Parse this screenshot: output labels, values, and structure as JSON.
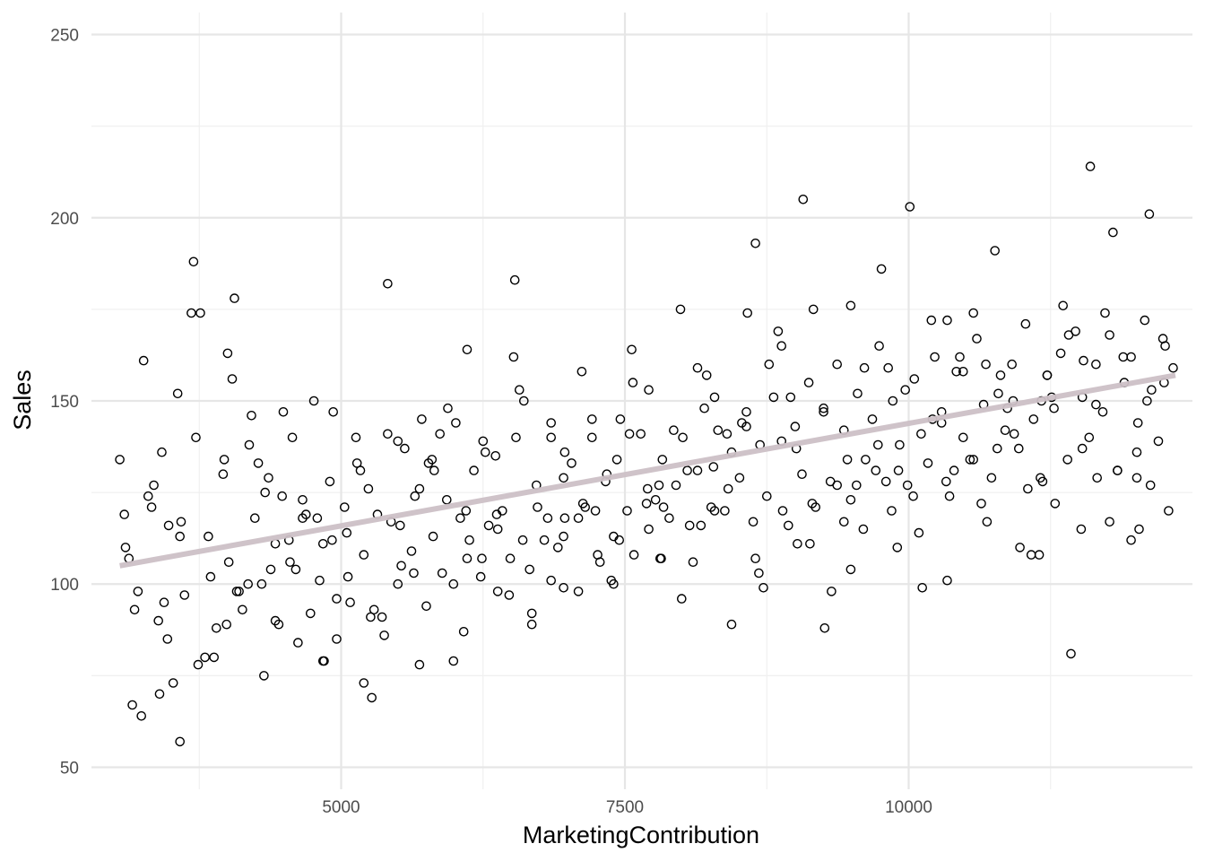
{
  "chart_data": {
    "type": "scatter",
    "xlabel": "MarketingContribution",
    "ylabel": "Sales",
    "xlim": [
      2800,
      12500
    ],
    "ylim": [
      44,
      256
    ],
    "xticks": [
      5000,
      7500,
      10000
    ],
    "yticks": [
      50,
      100,
      150,
      200,
      250
    ],
    "grid": true,
    "trend_line": {
      "x": [
        3050,
        12350
      ],
      "y": [
        105,
        157
      ],
      "color": "#ccc0c6"
    },
    "points": {
      "x": [
        3050,
        3090,
        3130,
        3180,
        3260,
        3330,
        3390,
        3420,
        3480,
        3560,
        3620,
        3700,
        3760,
        3830,
        3880,
        3960,
        4010,
        4060,
        4130,
        4190,
        4240,
        4300,
        4360,
        4420,
        4490,
        4540,
        4600,
        4660,
        4730,
        4790,
        4840,
        4900,
        4960,
        5030,
        5080,
        5140,
        5200,
        5260,
        5320,
        5380,
        5440,
        5500,
        5560,
        5620,
        5690,
        5750,
        5810,
        5870,
        5930,
        5990,
        6050,
        6110,
        6170,
        6230,
        6300,
        6360,
        6420,
        6480,
        6540,
        6600,
        6660,
        6720,
        6790,
        6850,
        6910,
        6970,
        7030,
        7090,
        7150,
        7210,
        7280,
        7340,
        7400,
        7460,
        7520,
        7580,
        7640,
        7710,
        7770,
        7830,
        7890,
        7950,
        8010,
        8070,
        8140,
        8200,
        8260,
        8320,
        8380,
        8440,
        8510,
        8570,
        8630,
        8690,
        8750,
        8810,
        8880,
        8940,
        9000,
        9060,
        9120,
        9180,
        9250,
        9310,
        9370,
        9430,
        9490,
        9550,
        9620,
        9680,
        9740,
        9800,
        9860,
        9920,
        9990,
        10050,
        10110,
        10170,
        10230,
        10290,
        10360,
        10420,
        10480,
        10540,
        10600,
        10660,
        10730,
        10790,
        10850,
        10910,
        10970,
        11030,
        11100,
        11160,
        11220,
        11280,
        11340,
        11400,
        11470,
        11530,
        11590,
        11650,
        11710,
        11770,
        11840,
        11900,
        11960,
        12020,
        12080,
        12140,
        12200,
        12260,
        12330,
        3100,
        3210,
        3350,
        3470,
        3590,
        3720,
        3850,
        3970,
        4080,
        4210,
        4330,
        4450,
        4570,
        4690,
        4810,
        4930,
        5050,
        5170,
        5290,
        5410,
        5530,
        5650,
        5770,
        5890,
        6010,
        6130,
        6250,
        6370,
        6490,
        6610,
        6730,
        6850,
        6970,
        7090,
        7210,
        7330,
        7450,
        7570,
        7690,
        7810,
        7930,
        8050,
        8170,
        8290,
        8410,
        8530,
        8650,
        8770,
        8890,
        9010,
        9130,
        9250,
        9370,
        9490,
        9610,
        9730,
        9850,
        9970,
        10090,
        10210,
        10330,
        10450,
        10570,
        10690,
        10810,
        10930,
        11050,
        11170,
        11290,
        11410,
        11530,
        11650,
        11770,
        11890,
        12010,
        12130,
        12250,
        3160,
        3300,
        3440,
        3580,
        3740,
        3900,
        4040,
        4180,
        4320,
        4480,
        4620,
        4760,
        4920,
        5060,
        5200,
        5360,
        5500,
        5640,
        5800,
        5940,
        6080,
        6240,
        6380,
        6520,
        6680,
        6820,
        6960,
        7120,
        7260,
        7400,
        7560,
        7700,
        7840,
        8000,
        8140,
        8280,
        8440,
        8580,
        8720,
        8880,
        9020,
        9160,
        9320,
        9460,
        9600,
        9760,
        9900,
        10040,
        10200,
        10340,
        10480,
        10640,
        10780,
        10920,
        11080,
        11220,
        11360,
        11520,
        11660,
        11800,
        11960,
        12100,
        12240,
        3240,
        3520,
        3800,
        4100,
        4380,
        4660,
        4960,
        5240,
        5520,
        5820,
        6100,
        6380,
        6680,
        6960,
        7240,
        7540,
        7820,
        8100,
        8400,
        8680,
        8960,
        9260,
        9540,
        9820,
        10120,
        10400,
        10680,
        10980,
        11260,
        11540,
        11840,
        12120,
        3400,
        3680,
        3990,
        4270,
        4550,
        4850,
        5130,
        5410,
        5710,
        5990,
        6270,
        6570,
        6850,
        7130,
        7430,
        7710,
        7990,
        8290,
        8570,
        8850,
        9150,
        9430,
        9710,
        10010,
        10290,
        10570,
        10870,
        11150,
        11430,
        11730,
        12010,
        12290,
        3580,
        4000,
        4420,
        4840,
        5270,
        5690,
        6110,
        6530,
        6960,
        7380,
        7800,
        8220,
        8650,
        9070,
        9490,
        9910,
        10340,
        10760,
        11180,
        11600,
        12030
      ],
      "y": [
        134,
        119,
        107,
        93,
        161,
        121,
        90,
        136,
        116,
        152,
        97,
        188,
        174,
        113,
        80,
        130,
        106,
        178,
        93,
        138,
        118,
        100,
        129,
        90,
        147,
        112,
        104,
        123,
        92,
        118,
        111,
        128,
        96,
        121,
        95,
        133,
        108,
        91,
        119,
        86,
        117,
        100,
        137,
        109,
        126,
        94,
        113,
        141,
        123,
        100,
        118,
        107,
        131,
        102,
        116,
        135,
        120,
        97,
        140,
        112,
        104,
        127,
        112,
        144,
        110,
        118,
        133,
        98,
        121,
        140,
        106,
        130,
        113,
        145,
        120,
        108,
        141,
        115,
        123,
        134,
        118,
        127,
        140,
        116,
        131,
        148,
        121,
        142,
        120,
        136,
        129,
        147,
        117,
        138,
        124,
        151,
        139,
        116,
        143,
        130,
        155,
        121,
        147,
        128,
        160,
        142,
        123,
        152,
        134,
        145,
        165,
        128,
        150,
        138,
        127,
        156,
        141,
        133,
        162,
        147,
        124,
        158,
        140,
        134,
        167,
        149,
        129,
        152,
        142,
        160,
        137,
        171,
        145,
        129,
        157,
        148,
        163,
        134,
        169,
        151,
        140,
        160,
        147,
        168,
        131,
        155,
        162,
        144,
        172,
        153,
        139,
        165,
        159,
        110,
        98,
        127,
        85,
        117,
        140,
        102,
        134,
        98,
        146,
        125,
        89,
        140,
        119,
        101,
        147,
        114,
        131,
        93,
        141,
        105,
        124,
        133,
        103,
        144,
        112,
        139,
        119,
        107,
        150,
        121,
        101,
        136,
        118,
        145,
        128,
        112,
        155,
        122,
        107,
        142,
        131,
        116,
        151,
        126,
        144,
        107,
        160,
        120,
        137,
        111,
        148,
        127,
        104,
        159,
        138,
        120,
        153,
        114,
        145,
        128,
        162,
        134,
        117,
        157,
        141,
        126,
        150,
        122,
        168,
        137,
        149,
        117,
        162,
        136,
        127,
        155,
        67,
        124,
        95,
        113,
        78,
        88,
        156,
        100,
        75,
        124,
        84,
        150,
        112,
        102,
        73,
        91,
        139,
        103,
        134,
        148,
        87,
        107,
        115,
        162,
        89,
        118,
        99,
        158,
        108,
        100,
        164,
        126,
        121,
        96,
        159,
        132,
        89,
        174,
        99,
        165,
        111,
        175,
        98,
        134,
        115,
        186,
        110,
        124,
        172,
        101,
        158,
        122,
        137,
        150,
        108,
        157,
        176,
        115,
        129,
        196,
        112,
        150,
        167,
        64,
        73,
        80,
        98,
        104,
        118,
        85,
        126,
        116,
        131,
        120,
        98,
        92,
        129,
        120,
        141,
        107,
        106,
        141,
        103,
        151,
        88,
        127,
        159,
        99,
        131,
        160,
        110,
        151,
        161,
        131,
        201,
        70,
        174,
        89,
        133,
        106,
        79,
        140,
        182,
        145,
        79,
        136,
        153,
        140,
        122,
        134,
        153,
        175,
        120,
        143,
        169,
        122,
        117,
        131,
        203,
        144,
        174,
        148,
        108,
        81,
        174,
        129,
        120,
        57,
        163,
        111,
        79,
        69,
        78,
        164,
        183,
        113,
        101,
        127,
        157,
        193,
        205,
        176,
        131,
        172,
        191,
        128,
        214,
        115
      ]
    }
  }
}
